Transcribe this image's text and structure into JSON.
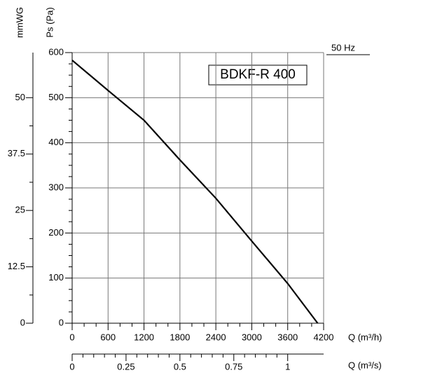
{
  "chart_data": {
    "type": "line",
    "title": "BDKF-R 400",
    "annotation": "50 Hz",
    "xlabel": "Q (m³/h)",
    "ylabel": "Ps (Pa)",
    "y2label": "mmWG",
    "x2label": "Q (m³/s)",
    "x": [
      0,
      600,
      1200,
      1800,
      2400,
      3000,
      3600,
      4100
    ],
    "series": [
      {
        "name": "BDKF-R 400",
        "color": "#000000",
        "values": [
          583,
          516,
          450,
          362,
          277,
          182,
          88,
          0
        ]
      }
    ],
    "xlim": [
      0,
      4200
    ],
    "xticks": [
      0,
      600,
      1200,
      1800,
      2400,
      3000,
      3600,
      4200
    ],
    "ylim": [
      0,
      600
    ],
    "yticks": [
      0,
      100,
      200,
      300,
      400,
      500,
      600
    ],
    "y2lim": [
      0,
      60
    ],
    "y2ticks": [
      0,
      12.5,
      25,
      37.5,
      50
    ],
    "x2lim": [
      0,
      1.1667
    ],
    "x2ticks": [
      0,
      0.25,
      0.5,
      0.75,
      1
    ],
    "grid": true
  }
}
